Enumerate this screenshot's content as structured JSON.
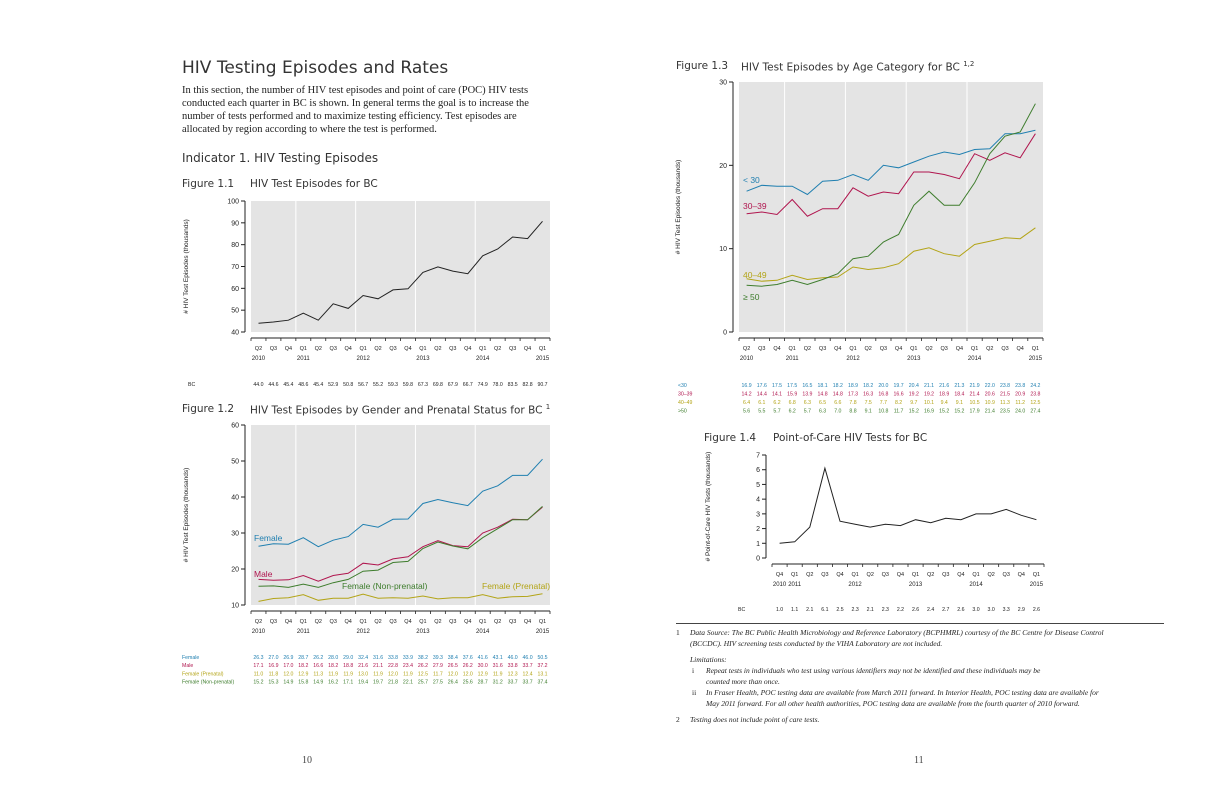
{
  "left_page": {
    "title": "HIV Testing Episodes and Rates",
    "intro": [
      "In this section, the number of HIV test episodes and point of care (POC) HIV tests",
      "conducted each quarter in BC is shown. In general terms the goal is to increase the",
      "number of tests performed and to maximize testing efficiency. Test episodes are",
      "allocated by region according to where the test is performed."
    ],
    "indicator_heading": "Indicator 1. HIV Testing Episodes",
    "page_number": "10"
  },
  "right_page": {
    "page_number": "11"
  },
  "quarters": [
    "Q2",
    "Q3",
    "Q4",
    "Q1",
    "Q2",
    "Q3",
    "Q4",
    "Q1",
    "Q2",
    "Q3",
    "Q4",
    "Q1",
    "Q2",
    "Q3",
    "Q4",
    "Q1",
    "Q2",
    "Q3",
    "Q4",
    "Q1"
  ],
  "years": [
    "2010",
    "2011",
    "2012",
    "2013",
    "2014",
    "2015"
  ],
  "figures": {
    "fig1_1": {
      "label": "Figure 1.1",
      "title": "HIV Test Episodes for BC"
    },
    "fig1_2": {
      "label": "Figure 1.2",
      "title": "HIV Test Episodes by Gender and Prenatal Status for BC",
      "title_sup": "1"
    },
    "fig1_3": {
      "label": "Figure 1.3",
      "title": "HIV Test Episodes by Age Category for BC",
      "title_sup": "1,2"
    },
    "fig1_4": {
      "label": "Figure 1.4",
      "title": "Point-of-Care HIV Tests for BC"
    }
  },
  "chart_data": [
    {
      "id": "fig1_1",
      "type": "line",
      "ylabel": "# HIV Test Episodes (thousands)",
      "ylim": [
        40,
        100
      ],
      "yticks": [
        40,
        50,
        60,
        70,
        80,
        90,
        100
      ],
      "series": [
        {
          "name": "BC",
          "color": "#222222",
          "values": [
            44.0,
            44.6,
            45.4,
            48.6,
            45.4,
            52.9,
            50.8,
            56.7,
            55.2,
            59.3,
            59.8,
            67.3,
            69.8,
            67.9,
            66.7,
            74.9,
            78.0,
            83.5,
            82.8,
            90.7
          ]
        }
      ]
    },
    {
      "id": "fig1_2",
      "type": "line",
      "ylabel": "# HIV Test Episodes (thousands)",
      "ylim": [
        10,
        60
      ],
      "yticks": [
        10,
        20,
        30,
        40,
        50,
        60
      ],
      "series": [
        {
          "name": "Female",
          "color": "#1f7fb0",
          "values": [
            26.3,
            27.0,
            26.9,
            28.7,
            26.2,
            28.0,
            29.0,
            32.4,
            31.6,
            33.8,
            33.9,
            38.2,
            39.3,
            38.4,
            37.6,
            41.6,
            43.1,
            46.0,
            46.0,
            50.5
          ]
        },
        {
          "name": "Male",
          "color": "#b0154e",
          "values": [
            17.1,
            16.9,
            17.0,
            18.2,
            16.6,
            18.2,
            18.8,
            21.6,
            21.1,
            22.8,
            23.4,
            26.2,
            27.9,
            26.5,
            26.2,
            30.0,
            31.6,
            33.8,
            33.7,
            37.2
          ]
        },
        {
          "name": "Female (Prenatal)",
          "color": "#b3a417",
          "values": [
            11.0,
            11.8,
            12.0,
            12.9,
            11.3,
            11.9,
            11.9,
            13.0,
            11.9,
            12.0,
            11.9,
            12.5,
            11.7,
            12.0,
            12.0,
            12.9,
            11.9,
            12.3,
            12.4,
            13.1
          ]
        },
        {
          "name": "Female (Non-prenatal)",
          "color": "#3e7d2d",
          "values": [
            15.2,
            15.3,
            14.9,
            15.8,
            14.9,
            16.2,
            17.1,
            19.4,
            19.7,
            21.8,
            22.1,
            25.7,
            27.5,
            26.4,
            25.6,
            28.7,
            31.2,
            33.7,
            33.7,
            37.4
          ]
        }
      ]
    },
    {
      "id": "fig1_3",
      "type": "line",
      "ylabel": "# HIV Test Episodes (thousands)",
      "ylim": [
        0,
        30
      ],
      "yticks": [
        0,
        10,
        20,
        30
      ],
      "series": [
        {
          "name": "<30",
          "label": "< 30",
          "color": "#1f7fb0",
          "values": [
            16.9,
            17.6,
            17.5,
            17.5,
            16.5,
            18.1,
            18.2,
            18.9,
            18.2,
            20.0,
            19.7,
            20.4,
            21.1,
            21.6,
            21.3,
            21.9,
            22.0,
            23.8,
            23.8,
            24.2
          ]
        },
        {
          "name": "30–39",
          "label": "30–39",
          "color": "#b0154e",
          "values": [
            14.2,
            14.4,
            14.1,
            15.9,
            13.9,
            14.8,
            14.8,
            17.3,
            16.3,
            16.8,
            16.6,
            19.2,
            19.2,
            18.9,
            18.4,
            21.4,
            20.6,
            21.5,
            20.9,
            23.8
          ]
        },
        {
          "name": "40–49",
          "label": "40–49",
          "color": "#b3a417",
          "values": [
            6.4,
            6.1,
            6.2,
            6.8,
            6.3,
            6.5,
            6.6,
            7.8,
            7.5,
            7.7,
            8.2,
            9.7,
            10.1,
            9.4,
            9.1,
            10.5,
            10.9,
            11.3,
            11.2,
            12.5
          ]
        },
        {
          "name": ">50",
          "label": "≥ 50",
          "color": "#3e7d2d",
          "values": [
            5.6,
            5.5,
            5.7,
            6.2,
            5.7,
            6.3,
            7.0,
            8.8,
            9.1,
            10.8,
            11.7,
            15.2,
            16.9,
            15.2,
            15.2,
            17.9,
            21.4,
            23.5,
            24.0,
            27.4
          ]
        }
      ]
    },
    {
      "id": "fig1_4",
      "type": "line",
      "ylabel": "# Point-of-Care HIV Tests (thousands)",
      "ylim": [
        0,
        7
      ],
      "yticks": [
        0,
        1,
        2,
        3,
        4,
        5,
        6,
        7
      ],
      "quarters": [
        "Q4",
        "Q1",
        "Q2",
        "Q3",
        "Q4",
        "Q1",
        "Q2",
        "Q3",
        "Q4",
        "Q1",
        "Q2",
        "Q3",
        "Q4",
        "Q1",
        "Q2",
        "Q3",
        "Q4",
        "Q1"
      ],
      "years": [
        "2010",
        "2011",
        "2012",
        "2013",
        "2014",
        "2015"
      ],
      "series": [
        {
          "name": "BC",
          "color": "#222222",
          "values": [
            1.0,
            1.1,
            2.1,
            6.1,
            2.5,
            2.3,
            2.1,
            2.3,
            2.2,
            2.6,
            2.4,
            2.7,
            2.6,
            3.0,
            3.0,
            3.3,
            2.9,
            2.6
          ]
        }
      ]
    }
  ],
  "footnotes": {
    "n1_num": "1",
    "n1_text_a": "Data Source: The BC Public Health Microbiology and Reference Laboratory (BCPHMRL) courtesy of the BC Centre for Disease Control",
    "n1_text_b": "(BCCDC). HIV screening tests conducted by the VIHA Laboratory are not included.",
    "limitations": "Limitations:",
    "li_i_num": "i",
    "li_i_a": "Repeat tests in individuals who test using various identifiers may not be identified and these individuals may be",
    "li_i_b": "counted more than once.",
    "li_ii_num": "ii",
    "li_ii_a": "In Fraser Health, POC testing data are available from March 2011 forward. In Interior Health, POC testing data are available for",
    "li_ii_b": "May 2011 forward. For all other health authorities, POC testing data are available from the fourth quarter of 2010 forward.",
    "n2_num": "2",
    "n2_text": "Testing does not include point of care tests."
  }
}
